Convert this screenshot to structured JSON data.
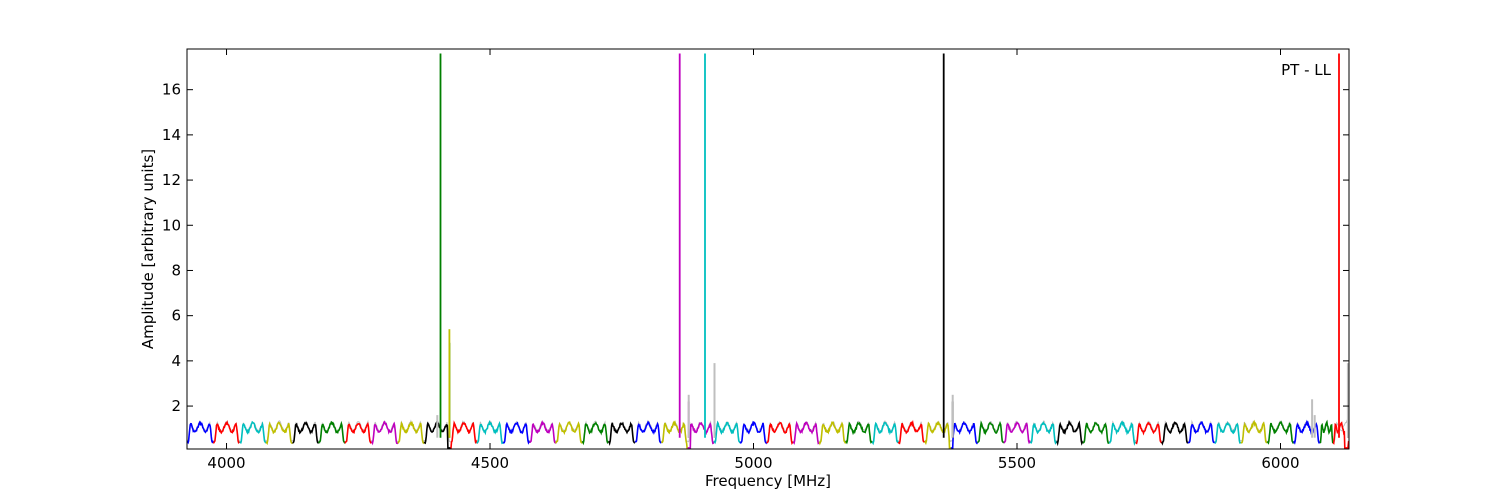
{
  "chart_data": {
    "type": "line",
    "title": "",
    "xlabel": "Frequency [MHz]",
    "ylabel": "Amplitude [arbitrary units]",
    "xlim": [
      3925,
      6130
    ],
    "ylim": [
      0.1,
      17.8
    ],
    "xticks": [
      4000,
      4500,
      5000,
      5500,
      6000
    ],
    "yticks": [
      2,
      4,
      6,
      8,
      10,
      12,
      14,
      16
    ],
    "grid": false,
    "legend": "none",
    "annotation": "PT - LL",
    "band_width_mhz": 50,
    "band_colors": [
      "#0000ff",
      "#008000",
      "#ff0000",
      "#00bfbf",
      "#000000",
      "#bfbf00",
      "#bf00bf"
    ],
    "background_color": "#bfbfbf",
    "bands": [
      {
        "start": 3925,
        "color": "#0000ff"
      },
      {
        "start": 3975,
        "color": "#ff0000"
      },
      {
        "start": 4025,
        "color": "#00bfbf"
      },
      {
        "start": 4075,
        "color": "#bfbf00"
      },
      {
        "start": 4125,
        "color": "#000000"
      },
      {
        "start": 4175,
        "color": "#008000"
      },
      {
        "start": 4225,
        "color": "#ff0000"
      },
      {
        "start": 4275,
        "color": "#bf00bf"
      },
      {
        "start": 4325,
        "color": "#bfbf00"
      },
      {
        "start": 4375,
        "color": "#000000"
      },
      {
        "start": 4425,
        "color": "#ff0000"
      },
      {
        "start": 4475,
        "color": "#00bfbf"
      },
      {
        "start": 4525,
        "color": "#0000ff"
      },
      {
        "start": 4575,
        "color": "#bf00bf"
      },
      {
        "start": 4625,
        "color": "#bfbf00"
      },
      {
        "start": 4675,
        "color": "#008000"
      },
      {
        "start": 4725,
        "color": "#000000"
      },
      {
        "start": 4775,
        "color": "#0000ff"
      },
      {
        "start": 4825,
        "color": "#bfbf00"
      },
      {
        "start": 4875,
        "color": "#bf00bf"
      },
      {
        "start": 4925,
        "color": "#00bfbf"
      },
      {
        "start": 4975,
        "color": "#0000ff"
      },
      {
        "start": 5025,
        "color": "#ff0000"
      },
      {
        "start": 5075,
        "color": "#bf00bf"
      },
      {
        "start": 5125,
        "color": "#bfbf00"
      },
      {
        "start": 5175,
        "color": "#008000"
      },
      {
        "start": 5225,
        "color": "#00bfbf"
      },
      {
        "start": 5275,
        "color": "#ff0000"
      },
      {
        "start": 5325,
        "color": "#bfbf00"
      },
      {
        "start": 5375,
        "color": "#0000ff"
      },
      {
        "start": 5425,
        "color": "#008000"
      },
      {
        "start": 5475,
        "color": "#bf00bf"
      },
      {
        "start": 5525,
        "color": "#00bfbf"
      },
      {
        "start": 5575,
        "color": "#000000"
      },
      {
        "start": 5625,
        "color": "#008000"
      },
      {
        "start": 5675,
        "color": "#00bfbf"
      },
      {
        "start": 5725,
        "color": "#ff0000"
      },
      {
        "start": 5775,
        "color": "#000000"
      },
      {
        "start": 5825,
        "color": "#0000ff"
      },
      {
        "start": 5875,
        "color": "#00bfbf"
      },
      {
        "start": 5925,
        "color": "#bfbf00"
      },
      {
        "start": 5975,
        "color": "#008000"
      },
      {
        "start": 6025,
        "color": "#0000ff"
      },
      {
        "start": 6075,
        "color": "#008000"
      },
      {
        "start": 6100,
        "color": "#ff0000"
      }
    ],
    "spikes": [
      {
        "x": 4406,
        "y": 17.6,
        "color": "#008000"
      },
      {
        "x": 4423,
        "y": 4.8,
        "color": "#008000"
      },
      {
        "x": 4423,
        "y": 5.4,
        "color": "#bfbf00"
      },
      {
        "x": 4400,
        "y": 1.6,
        "color": "#bfbfbf"
      },
      {
        "x": 4860,
        "y": 17.6,
        "color": "#bf00bf"
      },
      {
        "x": 4877,
        "y": 2.2,
        "color": "#bf00bf"
      },
      {
        "x": 4877,
        "y": 2.5,
        "color": "#bfbfbf"
      },
      {
        "x": 4908,
        "y": 17.6,
        "color": "#00bfbf"
      },
      {
        "x": 4926,
        "y": 2.9,
        "color": "#00bfbf"
      },
      {
        "x": 4926,
        "y": 3.9,
        "color": "#bfbfbf"
      },
      {
        "x": 5361,
        "y": 17.6,
        "color": "#000000"
      },
      {
        "x": 5378,
        "y": 2.2,
        "color": "#000000"
      },
      {
        "x": 5378,
        "y": 2.5,
        "color": "#bfbfbf"
      },
      {
        "x": 6060,
        "y": 2.3,
        "color": "#bfbfbf"
      },
      {
        "x": 6065,
        "y": 1.6,
        "color": "#bfbfbf"
      },
      {
        "x": 6111,
        "y": 17.6,
        "color": "#ff0000"
      },
      {
        "x": 6128,
        "y": 3.1,
        "color": "#ff0000"
      },
      {
        "x": 6128,
        "y": 3.9,
        "color": "#bfbfbf"
      }
    ],
    "dips": [
      4423,
      4877,
      5375,
      6125
    ]
  }
}
